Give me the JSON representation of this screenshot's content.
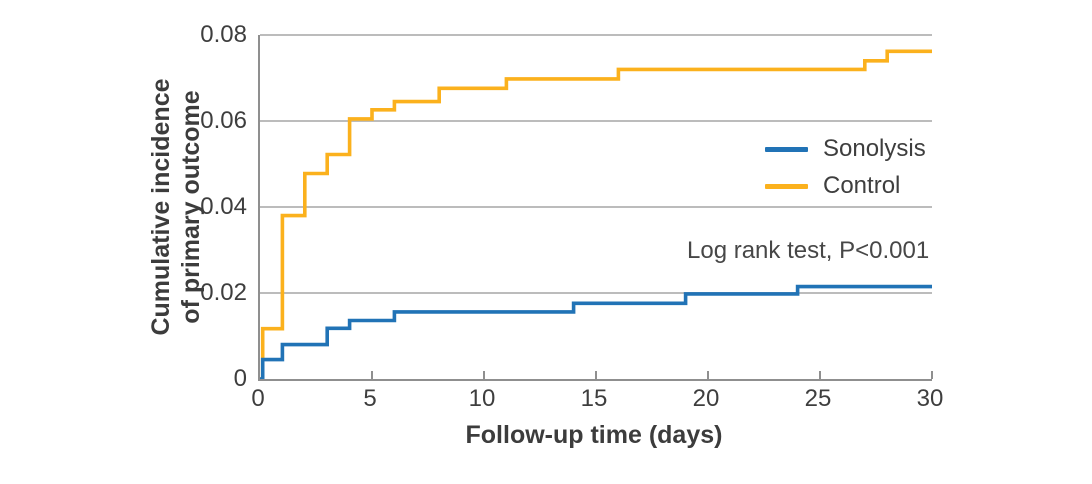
{
  "figure": {
    "y_axis_title_line1": "Cumulative incidence",
    "y_axis_title_line2": "of primary outcome",
    "x_axis_title": "Follow-up time (days)",
    "annotation": "Log rank test, P<0.001"
  },
  "legend": {
    "items": [
      {
        "label": "Sonolysis",
        "color": "#2173b6"
      },
      {
        "label": "Control",
        "color": "#fbb11d"
      }
    ]
  },
  "chart_data": {
    "type": "line",
    "subtype": "step-post",
    "title": "",
    "xlabel": "Follow-up time (days)",
    "ylabel": "Cumulative incidence of primary outcome",
    "annotation": "Log rank test, P<0.001",
    "xlim": [
      0,
      30
    ],
    "ylim": [
      0,
      0.08
    ],
    "xticks": {
      "values": [
        0,
        5,
        10,
        15,
        20,
        25,
        30
      ],
      "labels": [
        "0",
        "5",
        "10",
        "15",
        "20",
        "25",
        "30"
      ]
    },
    "yticks": {
      "values": [
        0,
        0.02,
        0.04,
        0.06,
        0.08
      ],
      "labels": [
        "0",
        "0.02",
        "0.04",
        "0.06",
        "0.08"
      ]
    },
    "grid": "horizontal",
    "legend_position": "right-center",
    "colors": {
      "axis": "#8f8f8f",
      "grid": "#bcbcbc",
      "text": "#3e3e3e"
    },
    "series": [
      {
        "name": "Sonolysis",
        "color": "#2173b6",
        "points": [
          [
            0,
            0
          ],
          [
            0.12,
            0.0045
          ],
          [
            1,
            0.008
          ],
          [
            3,
            0.0118
          ],
          [
            4,
            0.0136
          ],
          [
            6,
            0.0156
          ],
          [
            14,
            0.0176
          ],
          [
            19,
            0.0198
          ],
          [
            24,
            0.0215
          ],
          [
            30,
            0.0215
          ]
        ]
      },
      {
        "name": "Control",
        "color": "#fbb11d",
        "points": [
          [
            0,
            0
          ],
          [
            0.12,
            0.0117
          ],
          [
            1,
            0.038
          ],
          [
            2,
            0.0478
          ],
          [
            3,
            0.0522
          ],
          [
            4,
            0.0605
          ],
          [
            5,
            0.0626
          ],
          [
            6,
            0.0645
          ],
          [
            8,
            0.0676
          ],
          [
            11,
            0.0698
          ],
          [
            16,
            0.072
          ],
          [
            27,
            0.074
          ],
          [
            28,
            0.0762
          ],
          [
            30,
            0.0762
          ]
        ]
      }
    ]
  }
}
